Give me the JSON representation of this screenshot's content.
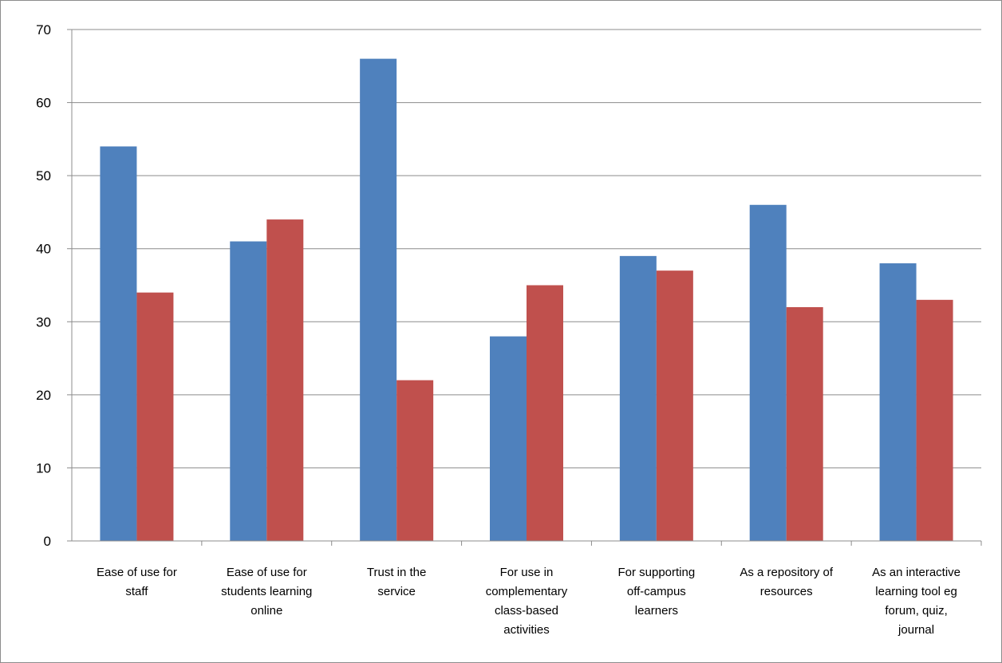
{
  "chart_data": {
    "type": "bar",
    "categories": [
      [
        "Ease of use for",
        "staff"
      ],
      [
        "Ease of use for",
        "students learning",
        "online"
      ],
      [
        "Trust in the",
        "service"
      ],
      [
        "For use in",
        "complementary",
        "class-based",
        "activities"
      ],
      [
        "For supporting",
        "off-campus",
        "learners"
      ],
      [
        "As a repository of",
        "resources"
      ],
      [
        "As an interactive",
        "learning tool eg",
        "forum, quiz,",
        "journal"
      ]
    ],
    "series": [
      {
        "values": [
          54,
          41,
          66,
          28,
          39,
          46,
          38
        ],
        "color": "#4f81bd"
      },
      {
        "values": [
          34,
          44,
          22,
          35,
          37,
          32,
          33
        ],
        "color": "#c0504d"
      }
    ],
    "yticks": [
      "0",
      "10",
      "20",
      "30",
      "40",
      "50",
      "60",
      "70"
    ],
    "ylim": [
      0,
      70
    ],
    "grid": true,
    "legend": "none",
    "title": "",
    "xlabel": "",
    "ylabel": ""
  }
}
